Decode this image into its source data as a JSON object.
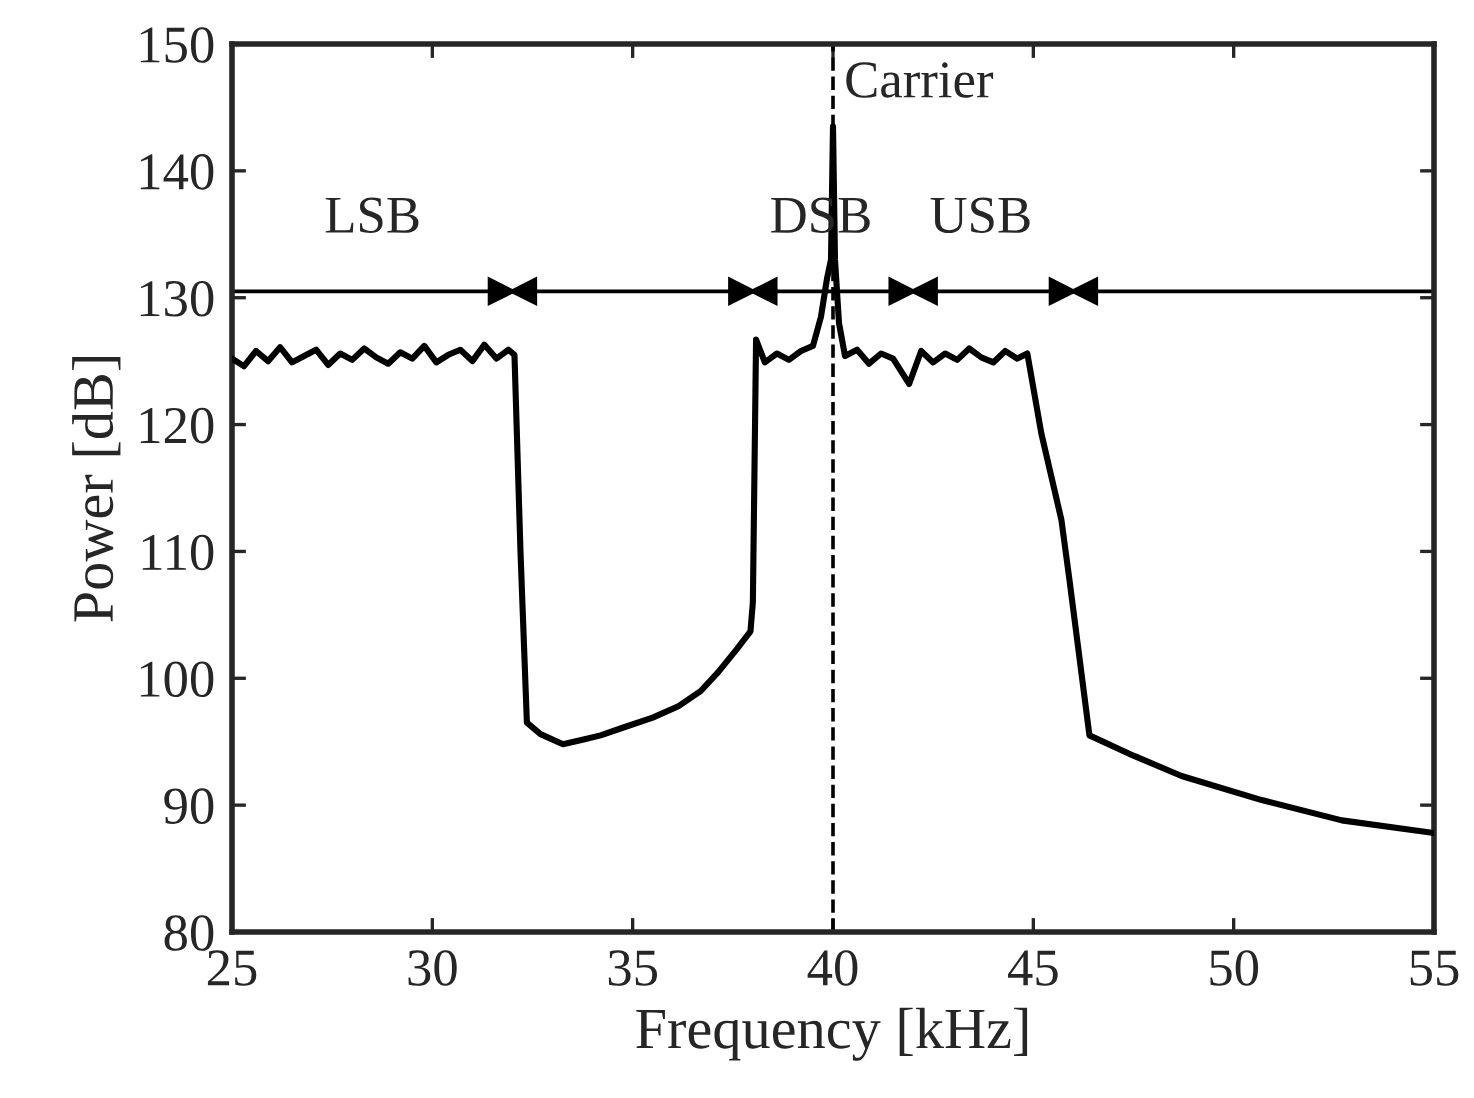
{
  "chart_data": {
    "type": "line",
    "xlabel": "Frequency [kHz]",
    "ylabel": "Power [dB]",
    "xlim": [
      25,
      55
    ],
    "ylim": [
      80,
      150
    ],
    "xticks": [
      25,
      30,
      35,
      40,
      45,
      50,
      55
    ],
    "yticks": [
      80,
      90,
      100,
      110,
      120,
      130,
      140,
      150
    ],
    "grid": false,
    "marker": "none",
    "line_style": "solid",
    "series": [
      {
        "color": "#000000",
        "x": [
          25,
          25.3,
          25.6,
          25.9,
          26.2,
          26.5,
          26.8,
          27.1,
          27.4,
          27.7,
          28,
          28.3,
          28.6,
          28.9,
          29.2,
          29.5,
          29.8,
          30.1,
          30.4,
          30.7,
          31,
          31.3,
          31.6,
          31.9,
          32.05,
          32.2,
          32.36,
          32.7,
          33.26,
          33.8,
          34.2,
          34.75,
          35.5,
          36.14,
          36.7,
          37.14,
          37.6,
          37.94,
          38.0,
          38.08,
          38.3,
          38.6,
          38.9,
          39.2,
          39.5,
          39.7,
          39.85,
          39.95,
          40.0,
          40.05,
          40.15,
          40.3,
          40.6,
          40.9,
          41.2,
          41.5,
          41.9,
          42.2,
          42.5,
          42.8,
          43.1,
          43.4,
          43.7,
          44.0,
          44.3,
          44.6,
          44.85,
          45.2,
          45.7,
          45.9,
          46.4,
          47.5,
          48.7,
          50.7,
          52.7,
          55
        ],
        "values": [
          125.2,
          124.6,
          125.8,
          125.0,
          126.1,
          124.9,
          125.4,
          125.9,
          124.7,
          125.6,
          125.1,
          126.0,
          125.3,
          124.8,
          125.7,
          125.2,
          126.2,
          124.9,
          125.5,
          125.9,
          125.0,
          126.3,
          125.2,
          125.9,
          125.5,
          110,
          96.5,
          95.6,
          94.8,
          95.2,
          95.5,
          96.1,
          96.9,
          97.8,
          99.0,
          100.5,
          102.3,
          103.7,
          106,
          126.7,
          124.9,
          125.6,
          125.1,
          125.8,
          126.2,
          128.5,
          131.5,
          133,
          143.5,
          133,
          128,
          125.4,
          125.9,
          124.8,
          125.6,
          125.2,
          123.2,
          125.8,
          124.9,
          125.6,
          125.1,
          126.0,
          125.3,
          124.9,
          125.8,
          125.2,
          125.6,
          119.3,
          112.5,
          107.8,
          95.5,
          93.9,
          92.3,
          90.4,
          88.8,
          87.8
        ]
      }
    ],
    "ref_lines": [
      {
        "axis": "y",
        "value": 130.5,
        "color": "#000000",
        "line_style": "solid"
      },
      {
        "axis": "x",
        "value": 40,
        "color": "#000000",
        "line_style": "dashed",
        "label": "Carrier"
      }
    ],
    "annotations": [
      "LSB",
      "DSB",
      "USB"
    ]
  }
}
